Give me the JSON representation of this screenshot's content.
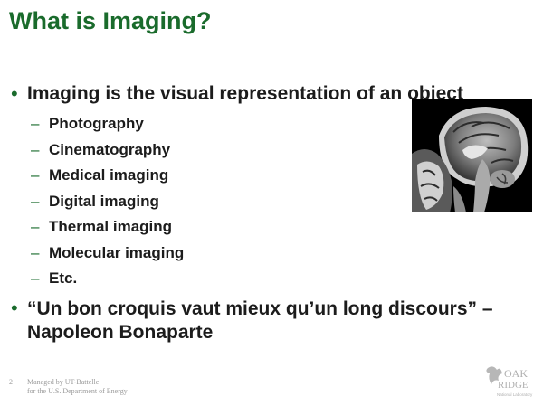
{
  "slide": {
    "title": "What is Imaging?",
    "bullet1": "Imaging is the visual representation of an object",
    "subitems": [
      "Photography",
      "Cinematography",
      "Medical imaging",
      "Digital imaging",
      "Thermal imaging",
      "Molecular imaging",
      "Etc."
    ],
    "bullet2_line1": "“Un bon croquis vaut mieux qu’un long discours” –",
    "bullet2_line2": "Napoleon Bonaparte",
    "bullet_glyph": "•",
    "dash_glyph": "–"
  },
  "footer": {
    "page_number": "2",
    "line1": "Managed by UT-Battelle",
    "line2": "for the U.S. Department of Energy"
  },
  "logo": {
    "line1": "OAK",
    "line2": "RIDGE",
    "line3": "National Laboratory"
  },
  "colors": {
    "title": "#1a6b2c",
    "text": "#1c1c1c",
    "footer": "#9a9a9a"
  }
}
